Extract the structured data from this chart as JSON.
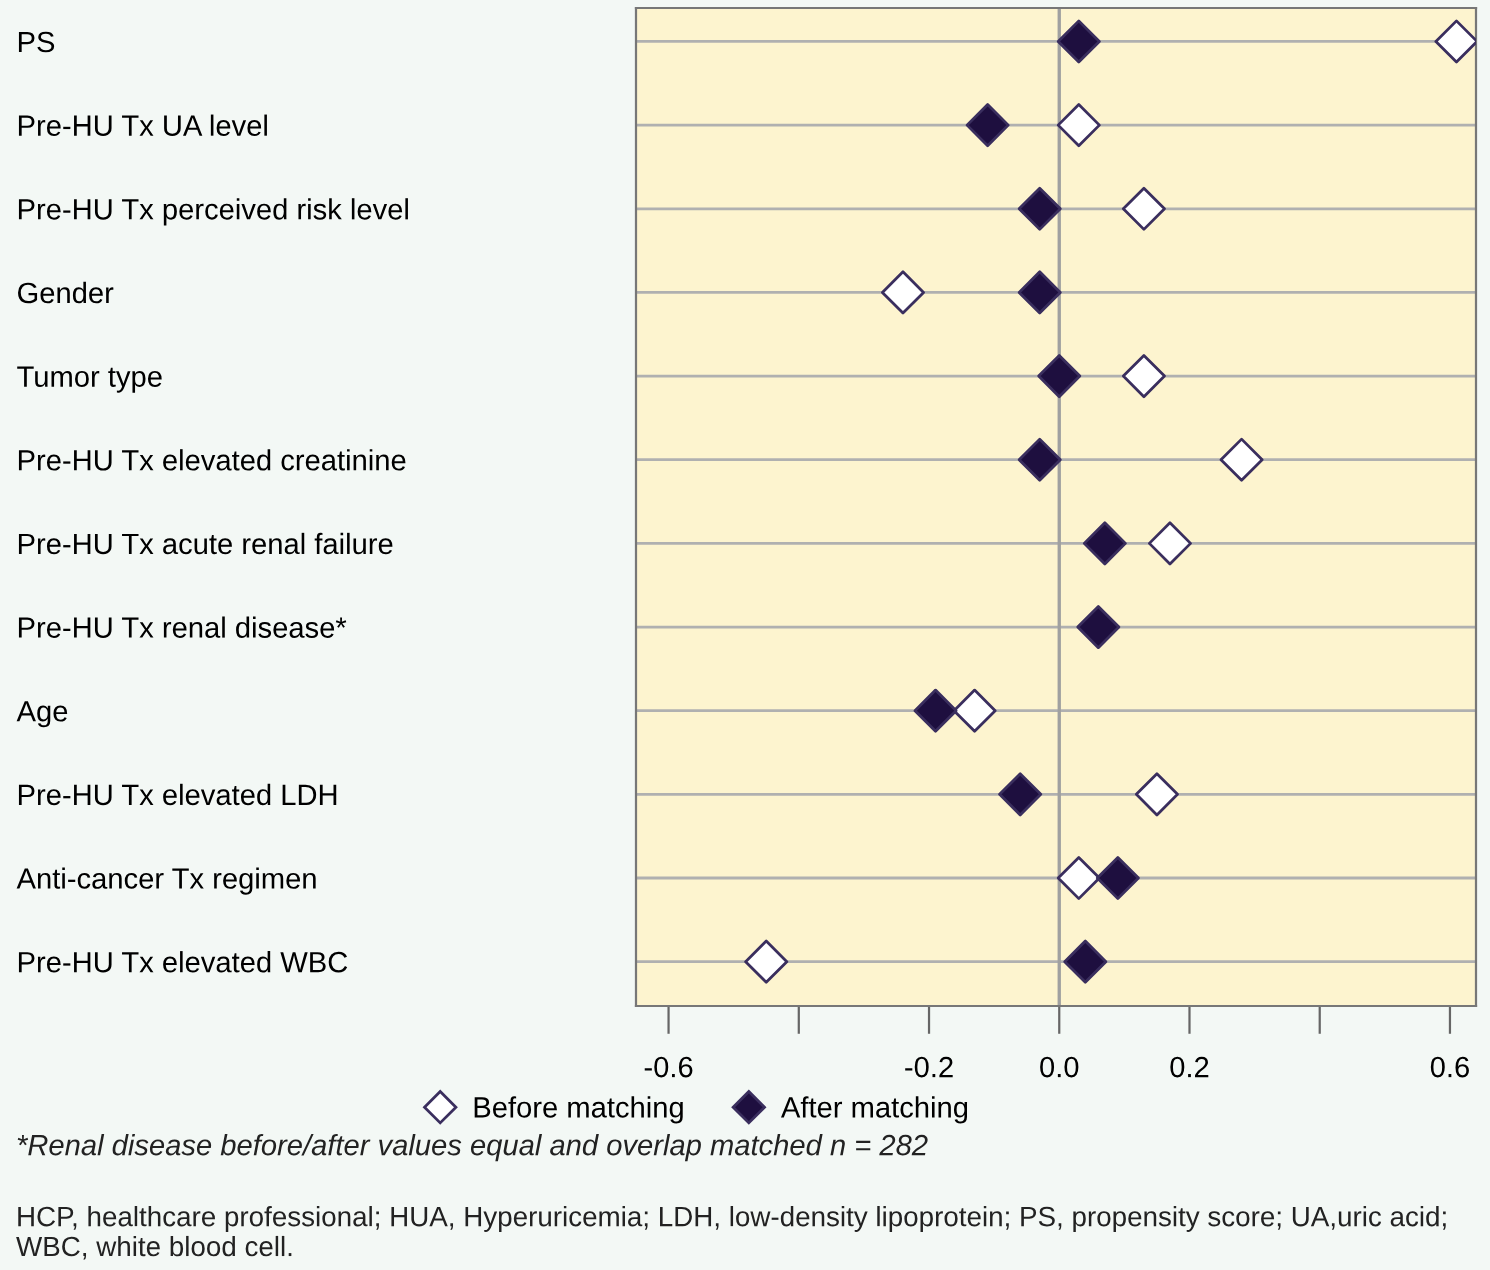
{
  "chart_data": {
    "type": "scatter",
    "orientation": "horizontal",
    "categories": [
      "PS",
      "Pre-HU Tx UA level",
      "Pre-HU Tx perceived risk level",
      "Gender",
      "Tumor type",
      "Pre-HU Tx elevated creatinine",
      "Pre-HU Tx acute renal failure",
      "Pre-HU Tx renal disease*",
      "Age",
      "Pre-HU Tx elevated LDH",
      "Anti-cancer Tx regimen",
      "Pre-HU Tx elevated WBC"
    ],
    "series": [
      {
        "name": "Before matching",
        "color": "#ffffff",
        "values": [
          0.61,
          0.03,
          0.13,
          -0.24,
          0.13,
          0.28,
          0.17,
          null,
          -0.13,
          0.15,
          0.03,
          -0.45
        ]
      },
      {
        "name": "After matching",
        "color": "#1e0f3f",
        "values": [
          0.03,
          -0.11,
          -0.03,
          -0.03,
          0.0,
          -0.03,
          0.07,
          0.06,
          -0.19,
          -0.06,
          0.09,
          0.04
        ]
      }
    ],
    "xlim": [
      -0.65,
      0.64
    ],
    "xticks": [
      {
        "value": -0.6,
        "label": "-0.6"
      },
      {
        "value": -0.4,
        "label": null
      },
      {
        "value": -0.2,
        "label": "-0.2"
      },
      {
        "value": 0,
        "label": "0.0"
      },
      {
        "value": 0.2,
        "label": "0.2"
      },
      {
        "value": 0.4,
        "label": null
      },
      {
        "value": 0.6,
        "label": "0.6"
      }
    ],
    "ref_lines": [
      {
        "axis": "x",
        "value": 0,
        "color": "#a0a0a0"
      }
    ],
    "grid": "y",
    "legend": "bottom",
    "marker": "diamond",
    "annotations": [
      "*Renal disease before/after values equal and overlap matched n = 282",
      "HCP, healthcare professional; HUA, Hyperuricemia; LDH, low-density lipoprotein; PS, propensity score; UA,uric acid; WBC, white blood cell."
    ]
  }
}
